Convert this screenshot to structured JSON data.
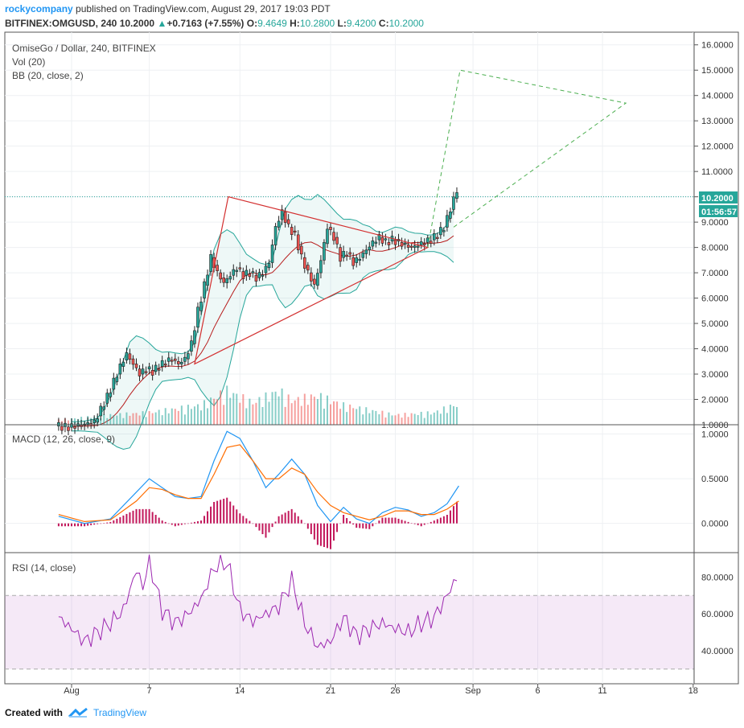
{
  "header": {
    "username": "rockycompany",
    "published_text": "published on TradingView.com, August 29, 2017 19:03 PDT",
    "symbol_line": "BITFINEX:OMGUSD, 240",
    "last": "10.2000",
    "change_arrow": "▲",
    "change": "+0.7163 (+7.55%)",
    "o_label": "O:",
    "o": "9.4649",
    "h_label": "H:",
    "h": "10.2800",
    "l_label": "L:",
    "l": "9.4200",
    "c_label": "C:",
    "c": "10.2000"
  },
  "legend": {
    "main": "OmiseGo / Dollar, 240, BITFINEX",
    "vol": "Vol (20)",
    "bb": "BB (20, close, 2)",
    "macd": "MACD (12, 26, close, 9)",
    "rsi": "RSI (14, close)"
  },
  "price_labels": {
    "last": "10.2000",
    "countdown": "01:56:57"
  },
  "footer": {
    "created_with": "Created with",
    "brand": "TradingView"
  },
  "colors": {
    "up": "#26a69a",
    "down": "#ef5350",
    "bb": "#26a69a",
    "bb_basis": "#b71c1c",
    "macd": "#2196f3",
    "signal": "#ff6d00",
    "hist": "#c2185b",
    "rsi": "#9c27b0",
    "triangle": "#d32f2f",
    "projection": "#4caf50"
  },
  "chart_data": [
    {
      "type": "candlestick",
      "title": "OmiseGo / Dollar, 240, BITFINEX",
      "x_ticks": [
        "Aug",
        "7",
        "14",
        "21",
        "26",
        "Sep",
        "6",
        "11",
        "18"
      ],
      "y_ticks": [
        "16.0000",
        "15.0000",
        "14.0000",
        "13.0000",
        "12.0000",
        "11.0000",
        "10.0000",
        "9.0000",
        "8.0000",
        "7.0000",
        "6.0000",
        "5.0000",
        "4.0000",
        "3.0000",
        "2.0000",
        "1.0000"
      ],
      "ylim": [
        1,
        16.5
      ],
      "close_path": [
        [
          -2.0,
          0.95
        ],
        [
          -1.0,
          0.9
        ],
        [
          0.0,
          1.0
        ],
        [
          1.0,
          1.1
        ],
        [
          1.5,
          1.6
        ],
        [
          2.0,
          2.1
        ],
        [
          2.5,
          2.7
        ],
        [
          3.0,
          3.3
        ],
        [
          3.5,
          3.8
        ],
        [
          4.0,
          3.4
        ],
        [
          4.5,
          3.0
        ],
        [
          5.0,
          3.2
        ],
        [
          5.5,
          3.1
        ],
        [
          6.0,
          3.3
        ],
        [
          6.5,
          3.5
        ],
        [
          7.0,
          3.6
        ],
        [
          7.5,
          3.4
        ],
        [
          8.0,
          3.6
        ],
        [
          8.5,
          4.2
        ],
        [
          9.0,
          5.5
        ],
        [
          9.5,
          6.5
        ],
        [
          10.0,
          7.6
        ],
        [
          10.5,
          7.0
        ],
        [
          11.0,
          6.6
        ],
        [
          11.5,
          6.9
        ],
        [
          12.0,
          7.2
        ],
        [
          12.5,
          6.9
        ],
        [
          13.0,
          7.0
        ],
        [
          13.5,
          6.8
        ],
        [
          14.0,
          7.0
        ],
        [
          14.5,
          7.4
        ],
        [
          15.0,
          8.8
        ],
        [
          15.5,
          9.4
        ],
        [
          16.0,
          8.8
        ],
        [
          16.5,
          8.5
        ],
        [
          17.0,
          7.6
        ],
        [
          17.5,
          7.0
        ],
        [
          18.0,
          6.5
        ],
        [
          18.5,
          7.5
        ],
        [
          19.0,
          8.8
        ],
        [
          19.5,
          8.4
        ],
        [
          20.0,
          7.6
        ],
        [
          20.5,
          7.8
        ],
        [
          21.0,
          7.4
        ],
        [
          21.5,
          7.6
        ],
        [
          22.0,
          7.9
        ],
        [
          22.5,
          8.2
        ],
        [
          23.0,
          8.4
        ],
        [
          23.5,
          8.2
        ],
        [
          24.0,
          8.3
        ],
        [
          24.5,
          8.2
        ],
        [
          25.0,
          8.1
        ],
        [
          25.5,
          8.0
        ],
        [
          26.0,
          8.1
        ],
        [
          26.5,
          8.2
        ],
        [
          27.0,
          8.3
        ],
        [
          27.5,
          8.5
        ],
        [
          28.0,
          8.8
        ],
        [
          28.5,
          9.5
        ],
        [
          28.9,
          10.2
        ]
      ],
      "volume_peaks": [
        [
          -2,
          0.1
        ],
        [
          2,
          0.2
        ],
        [
          5,
          0.25
        ],
        [
          9,
          0.4
        ],
        [
          10,
          0.55
        ],
        [
          11,
          0.7
        ],
        [
          13,
          0.45
        ],
        [
          15,
          0.7
        ],
        [
          16,
          0.5
        ],
        [
          18,
          0.6
        ],
        [
          20,
          0.4
        ],
        [
          22,
          0.3
        ],
        [
          24,
          0.2
        ],
        [
          27,
          0.25
        ],
        [
          28.5,
          0.4
        ]
      ],
      "triangle": [
        [
          11.1,
          10.0
        ],
        [
          8.5,
          3.4
        ],
        [
          26.5,
          8.0
        ]
      ],
      "projection": [
        [
          26.5,
          8.0
        ],
        [
          29.0,
          15.0
        ],
        [
          41.8,
          13.7
        ],
        [
          28.5,
          8.8
        ]
      ],
      "current_price_line": 10.0
    },
    {
      "type": "line",
      "title": "MACD (12, 26, close, 9)",
      "y_ticks": [
        "1.0000",
        "0.5000",
        "0.0000"
      ],
      "ylim": [
        -0.3,
        1.05
      ],
      "series": [
        {
          "name": "MACD",
          "values": [
            [
              -2,
              0.08
            ],
            [
              0,
              0.0
            ],
            [
              2,
              0.05
            ],
            [
              4,
              0.35
            ],
            [
              5,
              0.5
            ],
            [
              6,
              0.4
            ],
            [
              7,
              0.3
            ],
            [
              8,
              0.28
            ],
            [
              9,
              0.3
            ],
            [
              10,
              0.7
            ],
            [
              11,
              1.03
            ],
            [
              12,
              0.95
            ],
            [
              13,
              0.7
            ],
            [
              14,
              0.4
            ],
            [
              15,
              0.55
            ],
            [
              16,
              0.72
            ],
            [
              17,
              0.55
            ],
            [
              18,
              0.2
            ],
            [
              19,
              0.02
            ],
            [
              20,
              0.18
            ],
            [
              21,
              0.05
            ],
            [
              22,
              0.0
            ],
            [
              23,
              0.12
            ],
            [
              24,
              0.18
            ],
            [
              25,
              0.15
            ],
            [
              26,
              0.08
            ],
            [
              27,
              0.12
            ],
            [
              28,
              0.22
            ],
            [
              28.9,
              0.42
            ]
          ]
        },
        {
          "name": "Signal",
          "values": [
            [
              -2,
              0.1
            ],
            [
              0,
              0.02
            ],
            [
              2,
              0.04
            ],
            [
              4,
              0.25
            ],
            [
              5,
              0.4
            ],
            [
              6,
              0.38
            ],
            [
              7,
              0.32
            ],
            [
              8,
              0.28
            ],
            [
              9,
              0.28
            ],
            [
              10,
              0.55
            ],
            [
              11,
              0.85
            ],
            [
              12,
              0.88
            ],
            [
              13,
              0.7
            ],
            [
              14,
              0.5
            ],
            [
              15,
              0.5
            ],
            [
              16,
              0.62
            ],
            [
              17,
              0.55
            ],
            [
              18,
              0.35
            ],
            [
              19,
              0.2
            ],
            [
              20,
              0.12
            ],
            [
              21,
              0.08
            ],
            [
              22,
              0.04
            ],
            [
              23,
              0.08
            ],
            [
              24,
              0.14
            ],
            [
              25,
              0.14
            ],
            [
              26,
              0.1
            ],
            [
              27,
              0.1
            ],
            [
              28,
              0.16
            ],
            [
              28.9,
              0.25
            ]
          ]
        }
      ]
    },
    {
      "type": "line",
      "title": "RSI (14, close)",
      "y_ticks": [
        "80.0000",
        "60.0000",
        "40.0000"
      ],
      "ylim": [
        22,
        92
      ],
      "band": [
        30,
        70
      ],
      "series": [
        {
          "name": "RSI",
          "values": [
            [
              -2,
              58
            ],
            [
              -1,
              52
            ],
            [
              0,
              45
            ],
            [
              1,
              50
            ],
            [
              2,
              55
            ],
            [
              3,
              62
            ],
            [
              4,
              84
            ],
            [
              4.5,
              75
            ],
            [
              5,
              88
            ],
            [
              6,
              62
            ],
            [
              7,
              55
            ],
            [
              8,
              60
            ],
            [
              9,
              68
            ],
            [
              10,
              85
            ],
            [
              11,
              88
            ],
            [
              12,
              62
            ],
            [
              13,
              56
            ],
            [
              14,
              60
            ],
            [
              15,
              64
            ],
            [
              16,
              78
            ],
            [
              17,
              55
            ],
            [
              18,
              42
            ],
            [
              19,
              45
            ],
            [
              20,
              58
            ],
            [
              21,
              48
            ],
            [
              22,
              52
            ],
            [
              23,
              55
            ],
            [
              24,
              52
            ],
            [
              25,
              50
            ],
            [
              26,
              55
            ],
            [
              27,
              58
            ],
            [
              28,
              70
            ],
            [
              28.9,
              82
            ]
          ]
        }
      ]
    }
  ]
}
